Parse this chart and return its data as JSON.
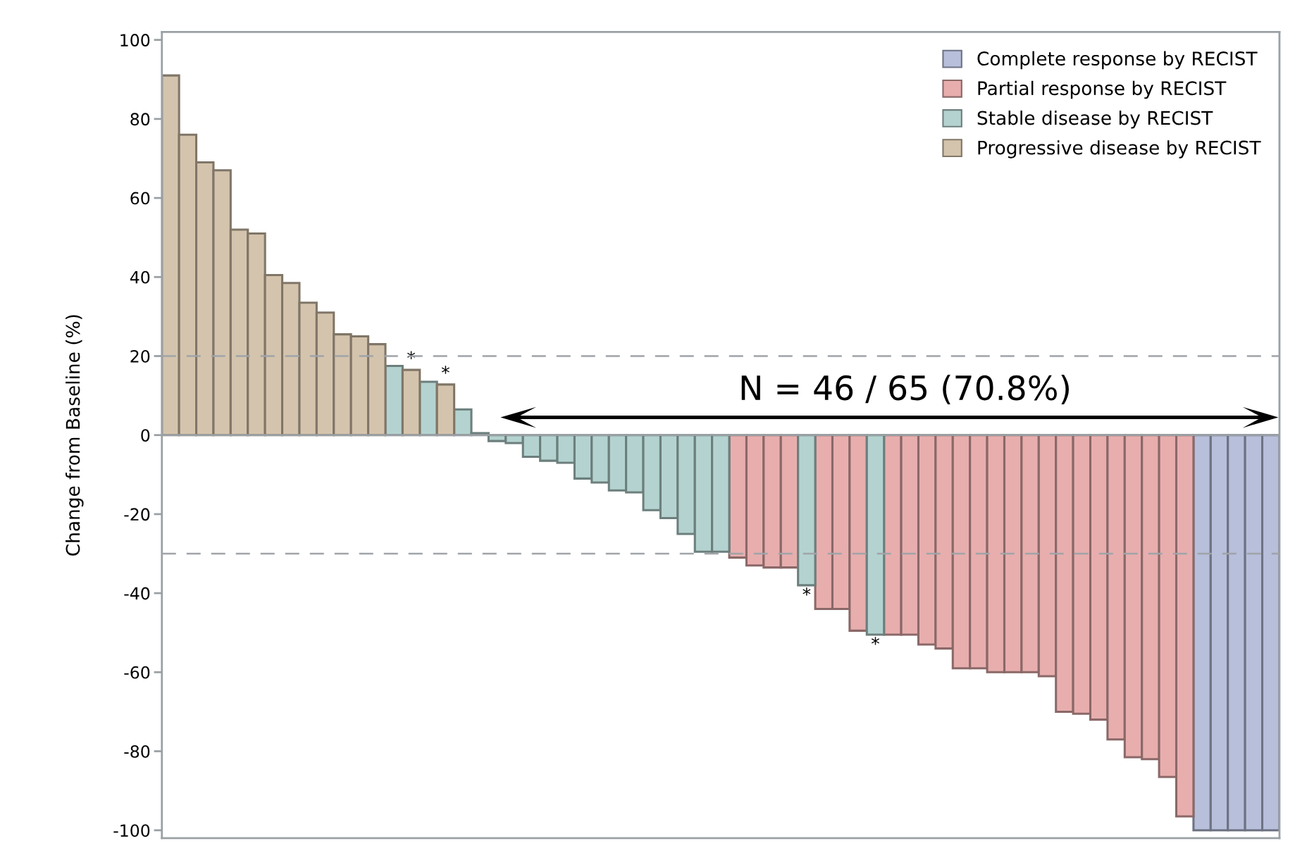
{
  "chart_data": {
    "type": "bar",
    "ylabel": "Change from Baseline (%)",
    "categories": [
      null,
      null,
      null,
      null,
      null,
      null,
      null,
      null,
      null,
      null,
      null,
      null,
      null,
      null,
      null,
      null,
      null,
      null,
      null,
      null,
      null,
      null,
      null,
      null,
      null,
      null,
      null,
      null,
      null,
      null,
      null,
      null,
      null,
      null,
      null,
      null,
      null,
      null,
      null,
      null,
      null,
      null,
      null,
      null,
      null,
      null,
      null,
      null,
      null,
      null,
      null,
      null,
      null,
      null,
      null,
      null,
      null,
      null,
      null,
      null,
      null,
      null,
      null,
      null,
      null
    ],
    "series": [
      {
        "name": "Complete response by RECIST",
        "color": "#b7bfdb",
        "values": [
          null,
          null,
          null,
          null,
          null,
          null,
          null,
          null,
          null,
          null,
          null,
          null,
          null,
          null,
          null,
          null,
          null,
          null,
          null,
          null,
          null,
          null,
          null,
          null,
          null,
          null,
          null,
          null,
          null,
          null,
          null,
          null,
          null,
          null,
          null,
          null,
          null,
          null,
          null,
          null,
          null,
          null,
          null,
          null,
          null,
          null,
          null,
          null,
          null,
          null,
          null,
          null,
          null,
          null,
          null,
          null,
          null,
          null,
          null,
          null,
          -100,
          -100,
          -100,
          -100,
          -100
        ]
      },
      {
        "name": "Partial response by RECIST",
        "color": "#e8aeae",
        "values": [
          null,
          null,
          null,
          null,
          null,
          null,
          null,
          null,
          null,
          null,
          null,
          null,
          null,
          null,
          null,
          null,
          null,
          null,
          null,
          null,
          null,
          null,
          null,
          null,
          null,
          null,
          null,
          null,
          null,
          null,
          null,
          null,
          null,
          -31,
          -33,
          -33.5,
          -33.5,
          null,
          -44,
          -44,
          -49.5,
          null,
          -50.5,
          -50.5,
          -53,
          -54,
          -59,
          -59,
          -60,
          -60,
          -60,
          -61,
          -70,
          -70.5,
          -72,
          -77,
          -81.5,
          -82,
          -86.5,
          -96.5,
          null,
          null,
          null,
          null,
          null
        ]
      },
      {
        "name": "Stable disease by RECIST",
        "color": "#b4d3d0",
        "values": [
          null,
          null,
          null,
          null,
          null,
          null,
          null,
          null,
          null,
          null,
          null,
          null,
          null,
          17.5,
          null,
          13.5,
          null,
          6.5,
          0.5,
          -1.5,
          -2,
          -5.5,
          -6.5,
          -7,
          -11,
          -12,
          -14,
          -14.5,
          -19,
          -21,
          -25,
          -29.5,
          -29.5,
          null,
          null,
          null,
          null,
          -38,
          null,
          null,
          null,
          -50.5,
          null,
          null,
          null,
          null,
          null,
          null,
          null,
          null,
          null,
          null,
          null,
          null,
          null,
          null,
          null,
          null,
          null,
          null,
          null,
          null,
          null,
          null,
          null
        ],
        "value_labels": [
          null,
          null,
          null,
          null,
          null,
          null,
          null,
          null,
          null,
          null,
          null,
          null,
          null,
          null,
          null,
          null,
          null,
          null,
          null,
          null,
          null,
          null,
          null,
          null,
          null,
          null,
          null,
          null,
          null,
          null,
          null,
          null,
          null,
          null,
          null,
          null,
          null,
          "*",
          null,
          null,
          null,
          "*",
          null,
          null,
          null,
          null,
          null,
          null,
          null,
          null,
          null,
          null,
          null,
          null,
          null,
          null,
          null,
          null,
          null,
          null,
          null,
          null,
          null,
          null,
          null
        ]
      },
      {
        "name": "Progressive disease by RECIST",
        "color": "#d5c4ad",
        "values": [
          91,
          76,
          69,
          67,
          52,
          51,
          40.5,
          38.5,
          33.5,
          31,
          25.5,
          25,
          23,
          null,
          16.5,
          null,
          12.8,
          null,
          null,
          null,
          null,
          null,
          null,
          null,
          null,
          null,
          null,
          null,
          null,
          null,
          null,
          null,
          null,
          null,
          null,
          null,
          null,
          null,
          null,
          null,
          null,
          null,
          null,
          null,
          null,
          null,
          null,
          null,
          null,
          null,
          null,
          null,
          null,
          null,
          null,
          null,
          null,
          null,
          null,
          null,
          null,
          null,
          null,
          null,
          null
        ],
        "value_labels": [
          null,
          null,
          null,
          null,
          null,
          null,
          null,
          null,
          null,
          null,
          null,
          null,
          null,
          null,
          "*",
          null,
          "*",
          null,
          null,
          null,
          null,
          null,
          null,
          null,
          null,
          null,
          null,
          null,
          null,
          null,
          null,
          null,
          null,
          null,
          null,
          null,
          null,
          null,
          null,
          null,
          null,
          null,
          null,
          null,
          null,
          null,
          null,
          null,
          null,
          null,
          null,
          null,
          null,
          null,
          null,
          null,
          null,
          null,
          null,
          null,
          null,
          null,
          null,
          null,
          null
        ]
      }
    ],
    "ylim": [
      -102,
      102
    ],
    "yticks": [
      -100,
      -80,
      -60,
      -40,
      -20,
      0,
      20,
      40,
      60,
      80,
      100
    ],
    "ref_lines": [
      {
        "axis": "y",
        "value": 20,
        "color": "#a0a4a8",
        "line_style": "dashed"
      },
      {
        "axis": "y",
        "value": -30,
        "color": "#a0a4a8",
        "line_style": "dashed"
      }
    ],
    "annotations": [
      "N = 46 / 65 (70.8%)"
    ],
    "legend": "top right",
    "grid": false
  }
}
